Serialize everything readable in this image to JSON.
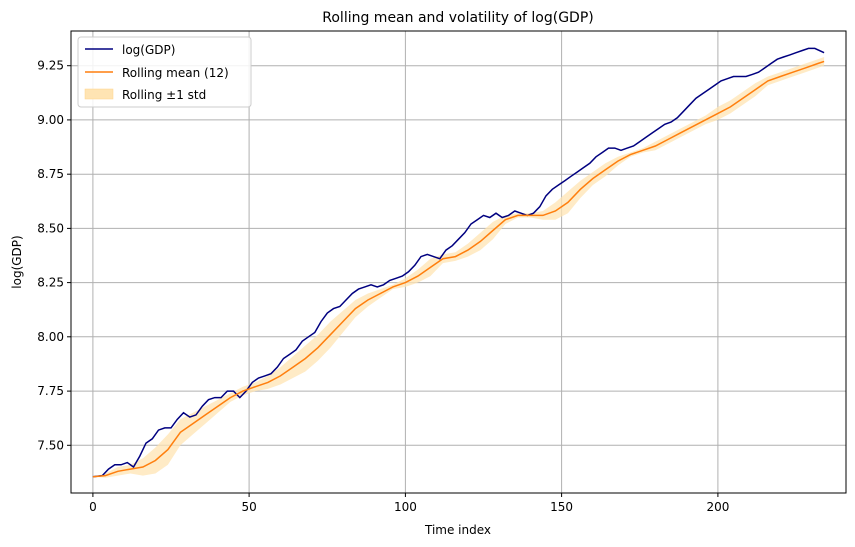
{
  "chart_data": {
    "type": "line",
    "title": "Rolling mean and volatility of log(GDP)",
    "xlabel": "Time index",
    "ylabel": "log(GDP)",
    "xlim": [
      -7,
      241
    ],
    "ylim": [
      7.28,
      9.41
    ],
    "xticks": [
      0,
      50,
      100,
      150,
      200
    ],
    "yticks": [
      7.5,
      7.75,
      8.0,
      8.25,
      8.5,
      8.75,
      9.0,
      9.25
    ],
    "ytick_labels": [
      "7.50",
      "7.75",
      "8.00",
      "8.25",
      "8.50",
      "8.75",
      "9.00",
      "9.25"
    ],
    "grid": true,
    "legend_position": "top-left",
    "legend": [
      "log(GDP)",
      "Rolling mean (12)",
      "Rolling ±1 std"
    ],
    "series": [
      {
        "name": "log(GDP)",
        "color": "#000080",
        "x": [
          0,
          3,
          5,
          7,
          9,
          11,
          13,
          15,
          17,
          19,
          21,
          23,
          25,
          27,
          29,
          31,
          33,
          35,
          37,
          39,
          41,
          43,
          45,
          47,
          49,
          51,
          53,
          55,
          57,
          59,
          61,
          63,
          65,
          67,
          69,
          71,
          73,
          75,
          77,
          79,
          81,
          83,
          85,
          87,
          89,
          91,
          93,
          95,
          97,
          99,
          101,
          103,
          105,
          107,
          109,
          111,
          113,
          115,
          117,
          119,
          121,
          123,
          125,
          127,
          129,
          131,
          133,
          135,
          137,
          139,
          141,
          143,
          145,
          147,
          149,
          151,
          153,
          155,
          157,
          159,
          161,
          163,
          165,
          167,
          169,
          171,
          173,
          175,
          177,
          179,
          181,
          183,
          185,
          187,
          189,
          191,
          193,
          195,
          197,
          199,
          201,
          203,
          205,
          207,
          209,
          211,
          213,
          215,
          217,
          219,
          221,
          223,
          225,
          227,
          229,
          231,
          234
        ],
        "values": [
          7.355,
          7.36,
          7.39,
          7.41,
          7.41,
          7.42,
          7.4,
          7.45,
          7.51,
          7.53,
          7.57,
          7.58,
          7.58,
          7.62,
          7.65,
          7.63,
          7.64,
          7.68,
          7.71,
          7.72,
          7.72,
          7.75,
          7.75,
          7.72,
          7.75,
          7.79,
          7.81,
          7.82,
          7.83,
          7.86,
          7.9,
          7.92,
          7.94,
          7.98,
          8.0,
          8.02,
          8.07,
          8.11,
          8.13,
          8.14,
          8.17,
          8.2,
          8.22,
          8.23,
          8.24,
          8.23,
          8.24,
          8.26,
          8.27,
          8.28,
          8.3,
          8.33,
          8.37,
          8.38,
          8.37,
          8.36,
          8.4,
          8.42,
          8.45,
          8.48,
          8.52,
          8.54,
          8.56,
          8.55,
          8.57,
          8.55,
          8.56,
          8.58,
          8.57,
          8.56,
          8.57,
          8.6,
          8.65,
          8.68,
          8.7,
          8.72,
          8.74,
          8.76,
          8.78,
          8.8,
          8.83,
          8.85,
          8.87,
          8.87,
          8.86,
          8.87,
          8.88,
          8.9,
          8.92,
          8.94,
          8.96,
          8.98,
          8.99,
          9.01,
          9.04,
          9.07,
          9.1,
          9.12,
          9.14,
          9.16,
          9.18,
          9.19,
          9.2,
          9.2,
          9.2,
          9.21,
          9.22,
          9.24,
          9.26,
          9.28,
          9.29,
          9.3,
          9.31,
          9.32,
          9.33,
          9.33,
          9.31
        ]
      },
      {
        "name": "Rolling mean (12)",
        "color": "#ff7f0e",
        "x": [
          0,
          4,
          8,
          12,
          16,
          20,
          24,
          28,
          32,
          36,
          40,
          44,
          48,
          52,
          56,
          60,
          64,
          68,
          72,
          76,
          80,
          84,
          88,
          92,
          96,
          100,
          104,
          108,
          112,
          116,
          120,
          124,
          128,
          132,
          136,
          140,
          144,
          148,
          152,
          156,
          160,
          164,
          168,
          172,
          176,
          180,
          184,
          188,
          192,
          196,
          200,
          204,
          208,
          212,
          216,
          220,
          224,
          228,
          232,
          234
        ],
        "values": [
          7.355,
          7.36,
          7.38,
          7.39,
          7.4,
          7.43,
          7.48,
          7.56,
          7.6,
          7.64,
          7.68,
          7.72,
          7.75,
          7.77,
          7.79,
          7.82,
          7.86,
          7.9,
          7.95,
          8.01,
          8.07,
          8.13,
          8.17,
          8.2,
          8.23,
          8.25,
          8.28,
          8.32,
          8.36,
          8.37,
          8.4,
          8.44,
          8.49,
          8.54,
          8.56,
          8.56,
          8.56,
          8.58,
          8.62,
          8.68,
          8.73,
          8.77,
          8.81,
          8.84,
          8.86,
          8.88,
          8.91,
          8.94,
          8.97,
          9.0,
          9.03,
          9.06,
          9.1,
          9.14,
          9.18,
          9.2,
          9.22,
          9.24,
          9.26,
          9.27
        ]
      },
      {
        "name": "Rolling ±1 std",
        "color": "#ffe4b3",
        "x": [
          0,
          4,
          8,
          12,
          16,
          20,
          24,
          28,
          32,
          36,
          40,
          44,
          48,
          52,
          56,
          60,
          64,
          68,
          72,
          76,
          80,
          84,
          88,
          92,
          96,
          100,
          104,
          108,
          112,
          116,
          120,
          124,
          128,
          132,
          136,
          140,
          144,
          148,
          152,
          156,
          160,
          164,
          168,
          172,
          176,
          180,
          184,
          188,
          192,
          196,
          200,
          204,
          208,
          212,
          216,
          220,
          224,
          228,
          232,
          234
        ],
        "upper": [
          7.355,
          7.37,
          7.4,
          7.41,
          7.44,
          7.49,
          7.55,
          7.62,
          7.65,
          7.68,
          7.71,
          7.74,
          7.77,
          7.79,
          7.82,
          7.86,
          7.91,
          7.96,
          8.01,
          8.07,
          8.12,
          8.17,
          8.2,
          8.22,
          8.24,
          8.27,
          8.31,
          8.36,
          8.38,
          8.39,
          8.43,
          8.48,
          8.53,
          8.56,
          8.57,
          8.57,
          8.58,
          8.62,
          8.67,
          8.72,
          8.76,
          8.8,
          8.83,
          8.85,
          8.87,
          8.9,
          8.93,
          8.96,
          8.99,
          9.02,
          9.06,
          9.09,
          9.13,
          9.17,
          9.2,
          9.22,
          9.24,
          9.26,
          9.28,
          9.29
        ],
        "lower": [
          7.355,
          7.35,
          7.36,
          7.37,
          7.36,
          7.37,
          7.41,
          7.5,
          7.55,
          7.6,
          7.65,
          7.7,
          7.73,
          7.75,
          7.76,
          7.78,
          7.81,
          7.84,
          7.89,
          7.95,
          8.02,
          8.09,
          8.14,
          8.18,
          8.22,
          8.23,
          8.25,
          8.28,
          8.34,
          8.35,
          8.37,
          8.4,
          8.45,
          8.52,
          8.55,
          8.55,
          8.54,
          8.54,
          8.57,
          8.64,
          8.7,
          8.74,
          8.79,
          8.83,
          8.85,
          8.86,
          8.89,
          8.92,
          8.95,
          8.98,
          9.0,
          9.03,
          9.07,
          9.11,
          9.16,
          9.18,
          9.2,
          9.22,
          9.24,
          9.25
        ]
      }
    ]
  }
}
